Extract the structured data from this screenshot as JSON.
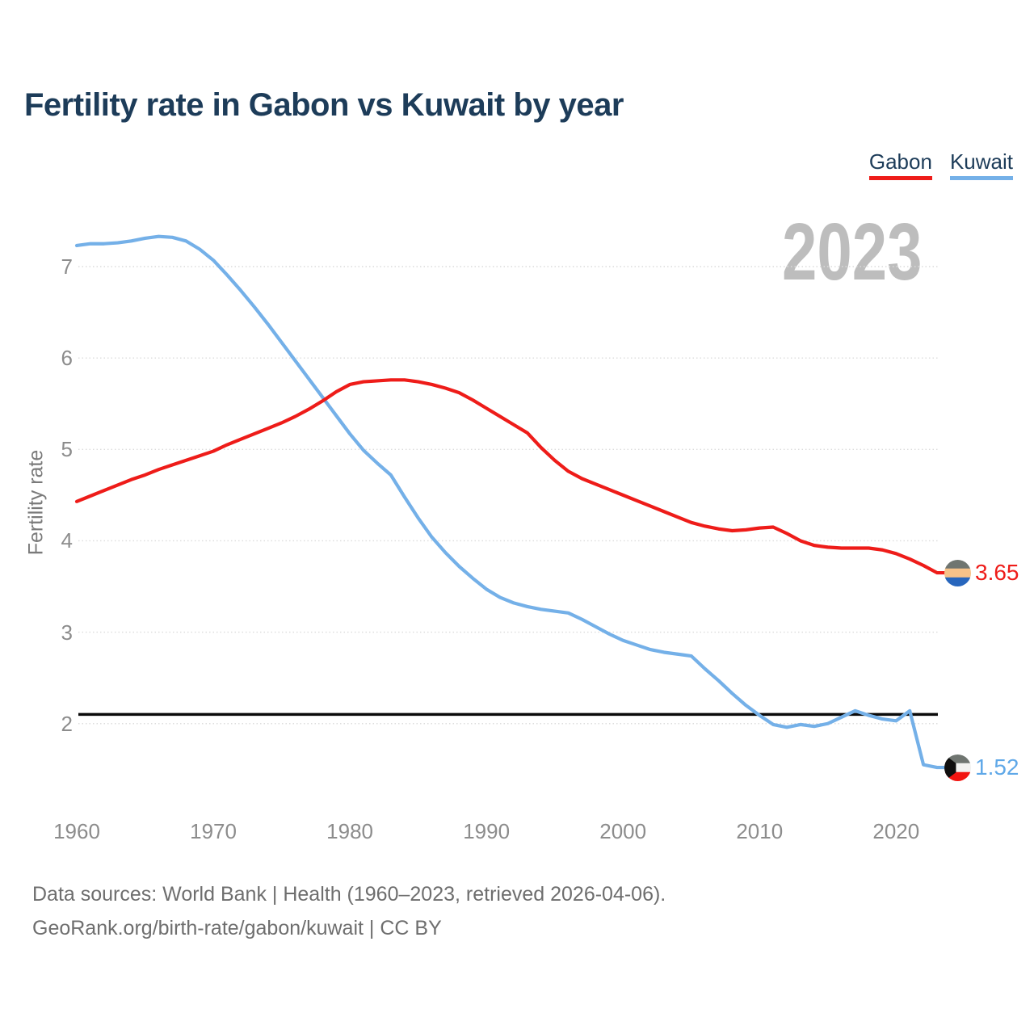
{
  "title": "Fertility rate in Gabon vs Kuwait by year",
  "year_badge": "2023",
  "legend": {
    "items": [
      {
        "label": "Gabon",
        "color": "#ee1c19"
      },
      {
        "label": "Kuwait",
        "color": "#74b0e8"
      }
    ]
  },
  "axes": {
    "y_label": "Fertility rate",
    "y_ticks": [
      2,
      3,
      4,
      5,
      6,
      7
    ],
    "x_ticks": [
      1960,
      1970,
      1980,
      1990,
      2000,
      2010,
      2020
    ]
  },
  "reference_line": {
    "value": 2.1,
    "color": "#0a0a0a"
  },
  "end_labels": [
    {
      "series": "Gabon",
      "value": "3.65",
      "color": "#ee1c19",
      "flag": {
        "icon": "gabon-flag-icon",
        "stripes": [
          "#6f7570",
          "#f6c289",
          "#2766bd"
        ]
      }
    },
    {
      "series": "Kuwait",
      "value": "1.52",
      "color": "#5fa8e8",
      "flag": {
        "icon": "kuwait-flag-icon",
        "stripes": [
          "#6f7570",
          "#f2f2f0",
          "#f21511"
        ],
        "hoist": "#0f0f0f"
      }
    }
  ],
  "footer": {
    "line1": "Data sources: World Bank | Health (1960–2023, retrieved 2026-04-06).",
    "line2": "GeoRank.org/birth-rate/gabon/kuwait | CC BY"
  },
  "chart_data": {
    "type": "line",
    "title": "Fertility rate in Gabon vs Kuwait by year",
    "xlabel": "",
    "ylabel": "Fertility rate",
    "xlim": [
      1960,
      2023
    ],
    "ylim": [
      1.4,
      7.6
    ],
    "grid": "horizontal-dotted",
    "legend_position": "top-right",
    "annotations": {
      "replacement_rate_line": 2.1,
      "year_label": "2023"
    },
    "x": [
      1960,
      1961,
      1962,
      1963,
      1964,
      1965,
      1966,
      1967,
      1968,
      1969,
      1970,
      1971,
      1972,
      1973,
      1974,
      1975,
      1976,
      1977,
      1978,
      1979,
      1980,
      1981,
      1982,
      1983,
      1984,
      1985,
      1986,
      1987,
      1988,
      1989,
      1990,
      1991,
      1992,
      1993,
      1994,
      1995,
      1996,
      1997,
      1998,
      1999,
      2000,
      2001,
      2002,
      2003,
      2004,
      2005,
      2006,
      2007,
      2008,
      2009,
      2010,
      2011,
      2012,
      2013,
      2014,
      2015,
      2016,
      2017,
      2018,
      2019,
      2020,
      2021,
      2022,
      2023
    ],
    "series": [
      {
        "name": "Gabon",
        "color": "#ee1c19",
        "values": [
          4.43,
          4.49,
          4.55,
          4.61,
          4.67,
          4.72,
          4.78,
          4.83,
          4.88,
          4.93,
          4.98,
          5.05,
          5.11,
          5.17,
          5.23,
          5.29,
          5.36,
          5.44,
          5.53,
          5.63,
          5.71,
          5.74,
          5.75,
          5.76,
          5.76,
          5.74,
          5.71,
          5.67,
          5.62,
          5.54,
          5.45,
          5.36,
          5.27,
          5.18,
          5.02,
          4.88,
          4.76,
          4.68,
          4.62,
          4.56,
          4.5,
          4.44,
          4.38,
          4.32,
          4.26,
          4.2,
          4.16,
          4.13,
          4.11,
          4.12,
          4.14,
          4.15,
          4.08,
          4.0,
          3.95,
          3.93,
          3.92,
          3.92,
          3.92,
          3.9,
          3.86,
          3.8,
          3.73,
          3.65
        ]
      },
      {
        "name": "Kuwait",
        "color": "#74b0e8",
        "values": [
          7.23,
          7.25,
          7.25,
          7.26,
          7.28,
          7.31,
          7.33,
          7.32,
          7.28,
          7.19,
          7.07,
          6.91,
          6.74,
          6.56,
          6.37,
          6.17,
          5.97,
          5.77,
          5.57,
          5.37,
          5.17,
          4.99,
          4.85,
          4.72,
          4.48,
          4.25,
          4.04,
          3.87,
          3.72,
          3.59,
          3.47,
          3.38,
          3.32,
          3.28,
          3.25,
          3.23,
          3.21,
          3.14,
          3.06,
          2.98,
          2.91,
          2.86,
          2.81,
          2.78,
          2.76,
          2.74,
          2.6,
          2.47,
          2.33,
          2.2,
          2.09,
          1.99,
          1.96,
          1.99,
          1.97,
          2.0,
          2.07,
          2.14,
          2.09,
          2.05,
          2.03,
          2.14,
          1.55,
          1.52
        ]
      }
    ]
  }
}
